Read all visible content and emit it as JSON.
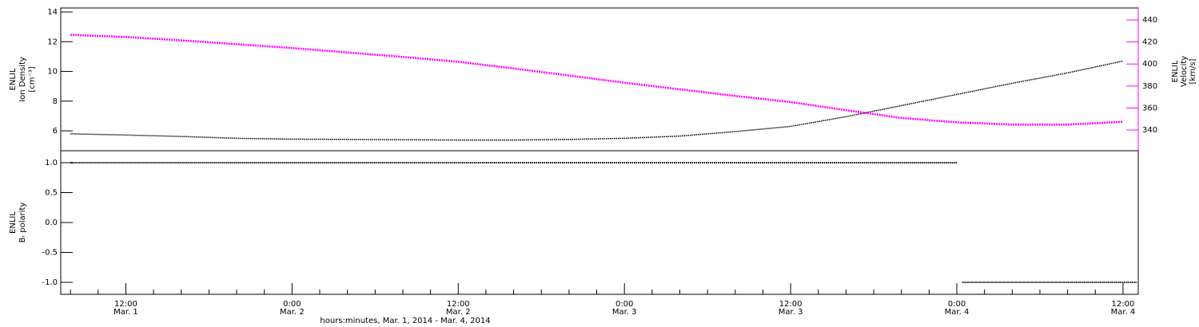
{
  "chart_data": [
    {
      "type": "line",
      "ylabel": [
        "ENLIL",
        "Ion Density",
        "[cm⁻³]"
      ],
      "y2label": [
        "ENLIL",
        "Velocity",
        "[km/s]"
      ],
      "x": [
        8,
        12,
        16,
        20,
        24,
        28,
        32,
        36,
        40,
        44,
        48,
        52,
        56,
        60,
        64,
        68,
        72,
        76,
        80,
        84
      ],
      "xlim": [
        7.3,
        85.1
      ],
      "ylim": [
        4.66,
        14.27
      ],
      "yticks": [
        6,
        8,
        10,
        12,
        14
      ],
      "y2lim": [
        321.2,
        450.9
      ],
      "y2ticks": [
        340,
        360,
        380,
        400,
        420,
        440
      ],
      "y2color": "#ff00ff",
      "series": [
        {
          "color": "#000000",
          "values": [
            5.8,
            5.72,
            5.62,
            5.5,
            5.44,
            5.42,
            5.4,
            5.38,
            5.38,
            5.42,
            5.5,
            5.65,
            5.95,
            6.3,
            6.95,
            7.7,
            8.45,
            9.2,
            9.9,
            10.7
          ]
        },
        {
          "color": "#ff00ff",
          "axis": "y2",
          "values": [
            426.5,
            424.5,
            421.5,
            418,
            414.5,
            410.5,
            406.5,
            402,
            396,
            389.5,
            383,
            377,
            371,
            365.5,
            358,
            351,
            347,
            345,
            345,
            347.5
          ]
        }
      ]
    },
    {
      "type": "line",
      "ylabel": [
        "ENLIL",
        "Bᵣ polarity"
      ],
      "xlabel": "hours:minutes, Mar.  1, 2014 - Mar.  4, 2014",
      "x": [
        8,
        72,
        72.2,
        72.4,
        85
      ],
      "xlim": [
        7.3,
        85.1
      ],
      "xticks": [
        {
          "value": 12,
          "label": "12:00",
          "date": "Mar. 1"
        },
        {
          "value": 24,
          "label": "0:00",
          "date": "Mar. 2"
        },
        {
          "value": 36,
          "label": "12:00",
          "date": "Mar. 2"
        },
        {
          "value": 48,
          "label": "0:00",
          "date": "Mar. 3"
        },
        {
          "value": 60,
          "label": "12:00",
          "date": "Mar. 3"
        },
        {
          "value": 72,
          "label": "0:00",
          "date": "Mar. 4"
        },
        {
          "value": 84,
          "label": "12:00",
          "date": "Mar. 4"
        }
      ],
      "xminorticks": [
        8,
        10,
        14,
        16,
        18,
        20,
        22,
        26,
        28,
        30,
        32,
        34,
        38,
        40,
        42,
        44,
        46,
        50,
        52,
        54,
        56,
        58,
        62,
        64,
        66,
        68,
        70,
        74,
        76,
        78,
        80,
        82
      ],
      "ylim": [
        -1.2,
        1.2
      ],
      "yticks": [
        {
          "value": -1,
          "label": "-1.0"
        },
        -0.5,
        {
          "value": 0,
          "label": "0.0"
        },
        0.5,
        {
          "value": 1,
          "label": "1.0"
        }
      ],
      "series": [
        {
          "color": "#000000",
          "values": [
            1,
            1,
            null,
            -1,
            -1
          ]
        }
      ]
    }
  ]
}
